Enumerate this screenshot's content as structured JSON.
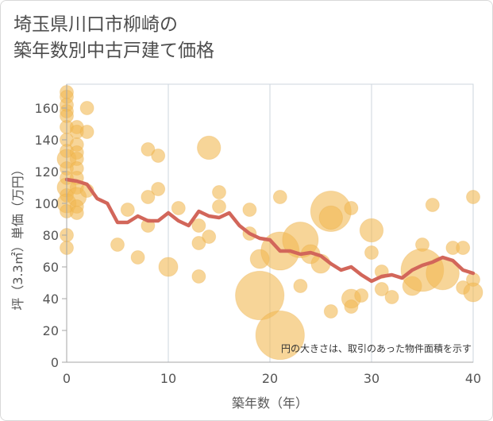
{
  "chart_data": {
    "type": "scatter",
    "title_lines": [
      "埼玉県川口市柳崎の",
      "築年数別中古戸建て価格"
    ],
    "xlabel": "築年数（年）",
    "ylabel": "坪（3.3㎡）単価（万円）",
    "xlim": [
      0,
      40
    ],
    "ylim": [
      0,
      175
    ],
    "x_ticks": [
      0,
      10,
      20,
      30,
      40
    ],
    "y_ticks": [
      0,
      20,
      40,
      60,
      80,
      100,
      120,
      140,
      160
    ],
    "note": "円の大きさは、取引のあった物件面積を示す",
    "colors": {
      "bubble": "#f2b953",
      "bubble_stroke": "#e8a73a",
      "line": "#d2665a",
      "grid": "#cdd6dd",
      "axis": "#a6a6a6"
    },
    "scatter": [
      {
        "x": 0,
        "y": 170,
        "s": 1
      },
      {
        "x": 0,
        "y": 167,
        "s": 1
      },
      {
        "x": 0,
        "y": 162,
        "s": 1
      },
      {
        "x": 0,
        "y": 158,
        "s": 1
      },
      {
        "x": 0,
        "y": 155,
        "s": 1
      },
      {
        "x": 0,
        "y": 148,
        "s": 1
      },
      {
        "x": 0,
        "y": 140,
        "s": 1
      },
      {
        "x": 0,
        "y": 133,
        "s": 1
      },
      {
        "x": 0,
        "y": 128,
        "s": 2
      },
      {
        "x": 0,
        "y": 122,
        "s": 1
      },
      {
        "x": 0,
        "y": 116,
        "s": 1
      },
      {
        "x": 0,
        "y": 110,
        "s": 2
      },
      {
        "x": 0,
        "y": 105,
        "s": 1
      },
      {
        "x": 0,
        "y": 100,
        "s": 2
      },
      {
        "x": 0,
        "y": 95,
        "s": 1
      },
      {
        "x": 0,
        "y": 80,
        "s": 1
      },
      {
        "x": 0,
        "y": 72,
        "s": 1
      },
      {
        "x": 1,
        "y": 148,
        "s": 1
      },
      {
        "x": 1,
        "y": 145,
        "s": 1
      },
      {
        "x": 1,
        "y": 137,
        "s": 1
      },
      {
        "x": 1,
        "y": 132,
        "s": 1
      },
      {
        "x": 1,
        "y": 128,
        "s": 1
      },
      {
        "x": 1,
        "y": 122,
        "s": 1
      },
      {
        "x": 1,
        "y": 116,
        "s": 1
      },
      {
        "x": 1,
        "y": 110,
        "s": 1
      },
      {
        "x": 1,
        "y": 104,
        "s": 2
      },
      {
        "x": 1,
        "y": 98,
        "s": 1
      },
      {
        "x": 1,
        "y": 94,
        "s": 1
      },
      {
        "x": 2,
        "y": 160,
        "s": 1
      },
      {
        "x": 2,
        "y": 145,
        "s": 1
      },
      {
        "x": 2,
        "y": 108,
        "s": 1
      },
      {
        "x": 5,
        "y": 74,
        "s": 1
      },
      {
        "x": 6,
        "y": 96,
        "s": 1
      },
      {
        "x": 7,
        "y": 66,
        "s": 1
      },
      {
        "x": 8,
        "y": 134,
        "s": 1
      },
      {
        "x": 8,
        "y": 104,
        "s": 1
      },
      {
        "x": 8,
        "y": 86,
        "s": 1
      },
      {
        "x": 9,
        "y": 130,
        "s": 1
      },
      {
        "x": 9,
        "y": 109,
        "s": 1
      },
      {
        "x": 10,
        "y": 60,
        "s": 2
      },
      {
        "x": 11,
        "y": 97,
        "s": 1
      },
      {
        "x": 13,
        "y": 75,
        "s": 1
      },
      {
        "x": 13,
        "y": 54,
        "s": 1
      },
      {
        "x": 13,
        "y": 86,
        "s": 1
      },
      {
        "x": 14,
        "y": 135,
        "s": 3
      },
      {
        "x": 14,
        "y": 79,
        "s": 1
      },
      {
        "x": 15,
        "y": 107,
        "s": 1
      },
      {
        "x": 15,
        "y": 98,
        "s": 1
      },
      {
        "x": 18,
        "y": 96,
        "s": 1
      },
      {
        "x": 18,
        "y": 81,
        "s": 1
      },
      {
        "x": 19,
        "y": 42,
        "s": 13
      },
      {
        "x": 19,
        "y": 65,
        "s": 2
      },
      {
        "x": 21,
        "y": 104,
        "s": 1
      },
      {
        "x": 21,
        "y": 70,
        "s": 8
      },
      {
        "x": 21,
        "y": 17,
        "s": 13
      },
      {
        "x": 23,
        "y": 77,
        "s": 7
      },
      {
        "x": 23,
        "y": 48,
        "s": 1
      },
      {
        "x": 24,
        "y": 68,
        "s": 2
      },
      {
        "x": 25,
        "y": 62,
        "s": 2
      },
      {
        "x": 26,
        "y": 95,
        "s": 9
      },
      {
        "x": 26,
        "y": 91,
        "s": 3
      },
      {
        "x": 26,
        "y": 32,
        "s": 1
      },
      {
        "x": 28,
        "y": 97,
        "s": 1
      },
      {
        "x": 28,
        "y": 40,
        "s": 2
      },
      {
        "x": 28,
        "y": 35,
        "s": 1
      },
      {
        "x": 29,
        "y": 42,
        "s": 1
      },
      {
        "x": 30,
        "y": 83,
        "s": 3
      },
      {
        "x": 30,
        "y": 69,
        "s": 1
      },
      {
        "x": 31,
        "y": 57,
        "s": 1
      },
      {
        "x": 31,
        "y": 46,
        "s": 1
      },
      {
        "x": 32,
        "y": 41,
        "s": 1
      },
      {
        "x": 34,
        "y": 48,
        "s": 2
      },
      {
        "x": 35,
        "y": 74,
        "s": 1
      },
      {
        "x": 35,
        "y": 58,
        "s": 10
      },
      {
        "x": 36,
        "y": 99,
        "s": 1
      },
      {
        "x": 37,
        "y": 56,
        "s": 6
      },
      {
        "x": 38,
        "y": 72,
        "s": 1
      },
      {
        "x": 39,
        "y": 72,
        "s": 1
      },
      {
        "x": 39,
        "y": 47,
        "s": 1
      },
      {
        "x": 40,
        "y": 104,
        "s": 1
      },
      {
        "x": 40,
        "y": 52,
        "s": 1
      },
      {
        "x": 40,
        "y": 44,
        "s": 2
      }
    ],
    "line": {
      "x": [
        0,
        1,
        2,
        3,
        4,
        5,
        6,
        7,
        8,
        9,
        10,
        11,
        12,
        13,
        14,
        15,
        16,
        17,
        18,
        19,
        20,
        21,
        22,
        23,
        24,
        25,
        26,
        27,
        28,
        29,
        30,
        31,
        32,
        33,
        34,
        35,
        36,
        37,
        38,
        39,
        40
      ],
      "y": [
        115,
        114,
        112,
        103,
        100,
        88,
        88,
        92,
        89,
        89,
        94,
        89,
        86,
        95,
        92,
        91,
        94,
        86,
        81,
        78,
        77,
        70,
        70,
        68,
        69,
        67,
        62,
        58,
        60,
        55,
        51,
        54,
        55,
        53,
        58,
        61,
        63,
        66,
        64,
        58,
        56
      ]
    }
  }
}
